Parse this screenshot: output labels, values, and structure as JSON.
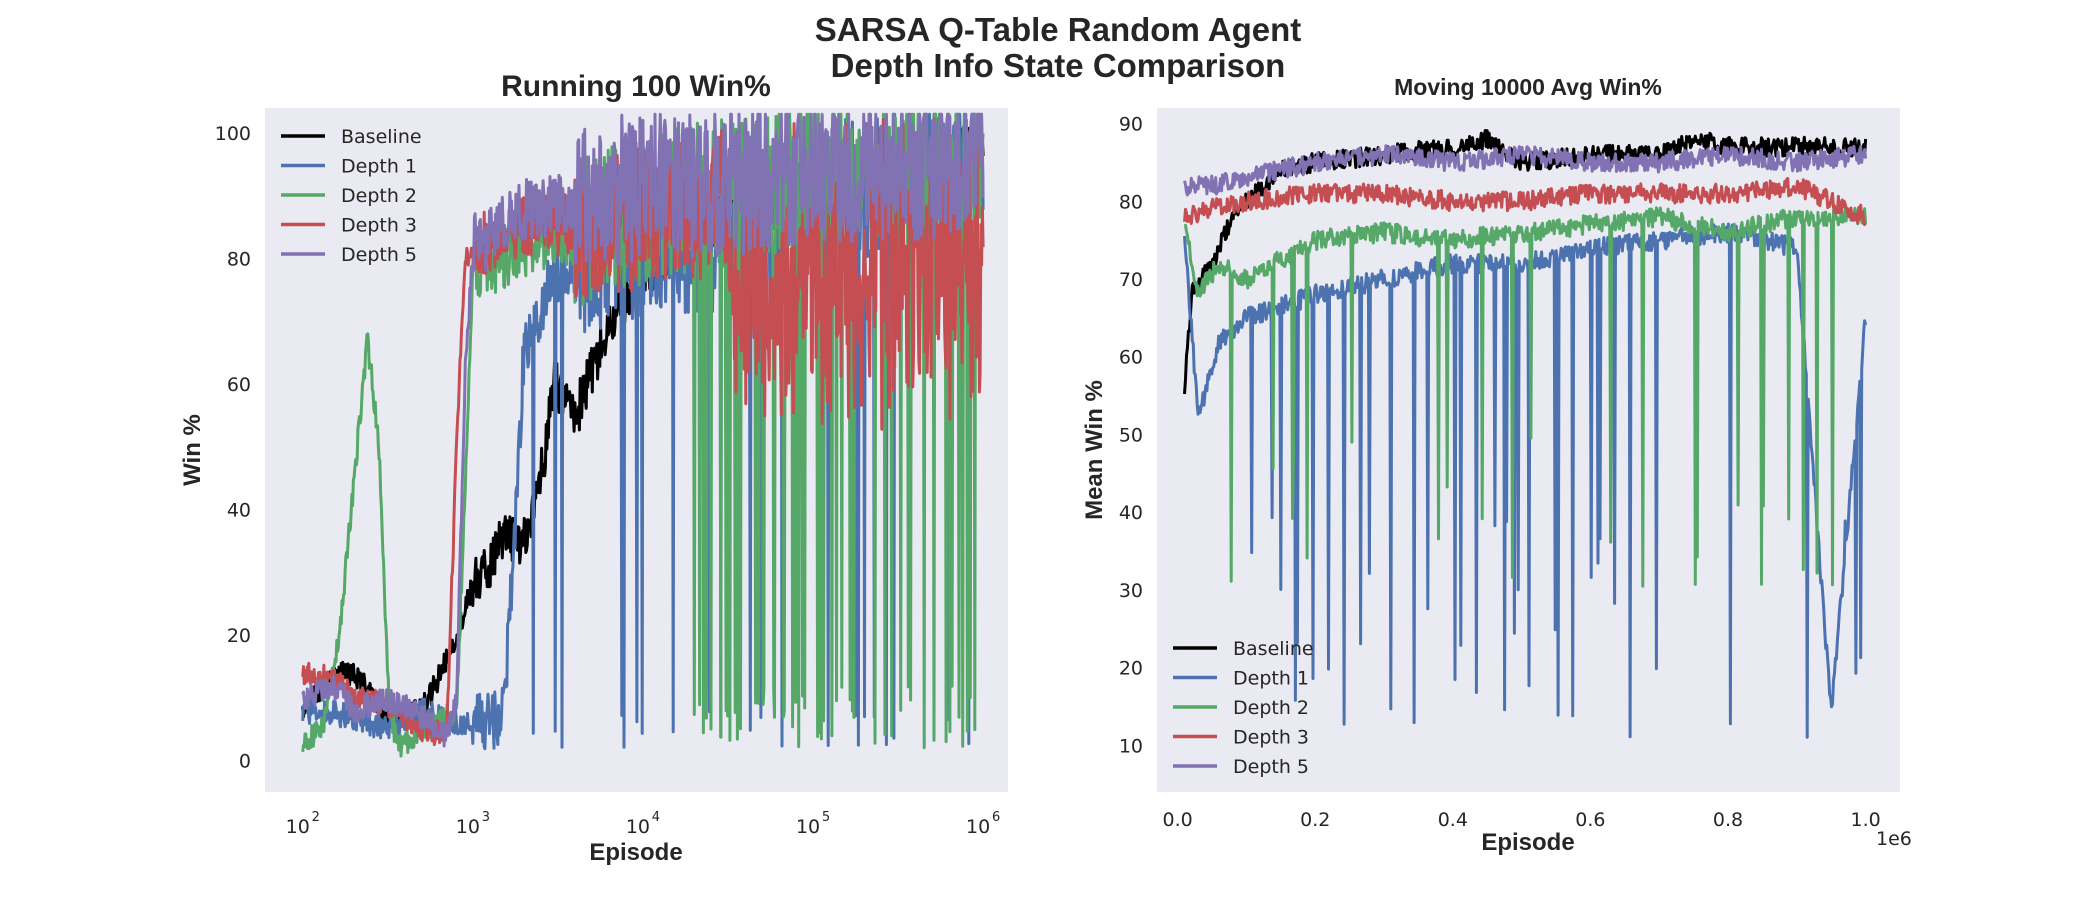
{
  "figure": {
    "suptitle_line1": "SARSA Q-Table Random Agent",
    "suptitle_line2": "Depth Info State Comparison",
    "background": "#ffffff",
    "axes_facecolor": "#eaeaf2"
  },
  "colors": {
    "Baseline": "#000000",
    "Depth 1": "#4c72b0",
    "Depth 2": "#55a868",
    "Depth 3": "#c44e52",
    "Depth 5": "#8172b3"
  },
  "chart_data": [
    {
      "type": "line",
      "title": "Running 100 Win%",
      "xlabel": "Episode",
      "ylabel": "Win %",
      "xscale": "log",
      "xlim": [
        60,
        1400000
      ],
      "ylim": [
        -5,
        104
      ],
      "xticks": [
        {
          "base": "10",
          "exp": "2",
          "value": 100
        },
        {
          "base": "10",
          "exp": "3",
          "value": 1000
        },
        {
          "base": "10",
          "exp": "4",
          "value": 10000
        },
        {
          "base": "10",
          "exp": "5",
          "value": 100000
        },
        {
          "base": "10",
          "exp": "6",
          "value": 1000000
        }
      ],
      "yticks": [
        "0",
        "20",
        "40",
        "60",
        "80",
        "100"
      ],
      "grid": false,
      "legend_placement": "upper-left",
      "legend": [
        "Baseline",
        "Depth 1",
        "Depth 2",
        "Depth 3",
        "Depth 5"
      ],
      "series": [
        {
          "name": "Baseline",
          "x": [
            100,
            150,
            200,
            300,
            500,
            800,
            1000,
            1500,
            2000,
            2500,
            3000,
            4000,
            5000,
            7000,
            10000,
            20000,
            50000,
            100000,
            200000,
            500000,
            1000000
          ],
          "y": [
            8,
            14,
            14,
            7,
            8,
            20,
            28,
            35,
            35,
            45,
            60,
            55,
            62,
            72,
            78,
            85,
            90,
            92,
            94,
            97,
            97
          ]
        },
        {
          "name": "Depth 1",
          "x": [
            100,
            200,
            300,
            500,
            800,
            1000,
            1500,
            2000,
            3000,
            5000,
            10000,
            20000,
            50000,
            100000,
            200000,
            500000,
            1000000
          ],
          "y": [
            8,
            7,
            5,
            8,
            6,
            6,
            7,
            65,
            78,
            80,
            82,
            82,
            84,
            88,
            92,
            94,
            95
          ]
        },
        {
          "name": "Depth 2",
          "x": [
            100,
            130,
            160,
            200,
            240,
            280,
            320,
            360,
            500,
            800,
            1000,
            1500,
            2000,
            5000,
            10000,
            20000,
            50000,
            100000,
            200000,
            500000,
            1000000
          ],
          "y": [
            3,
            5,
            18,
            45,
            67,
            50,
            10,
            2,
            5,
            8,
            78,
            80,
            82,
            85,
            88,
            90,
            92,
            93,
            94,
            95,
            96
          ]
        },
        {
          "name": "Depth 3",
          "x": [
            100,
            150,
            200,
            300,
            500,
            700,
            800,
            900,
            1000,
            2000,
            5000,
            10000,
            20000,
            50000,
            100000,
            200000,
            500000,
            1000000
          ],
          "y": [
            14,
            13,
            10,
            9,
            5,
            4,
            50,
            80,
            82,
            85,
            86,
            87,
            88,
            90,
            92,
            93,
            95,
            96
          ]
        },
        {
          "name": "Depth 5",
          "x": [
            100,
            150,
            200,
            300,
            500,
            700,
            800,
            900,
            1000,
            2000,
            5000,
            10000,
            20000,
            50000,
            100000,
            200000,
            500000,
            1000000
          ],
          "y": [
            10,
            12,
            8,
            10,
            7,
            4,
            10,
            62,
            82,
            88,
            90,
            92,
            92,
            93,
            94,
            95,
            95,
            96
          ]
        }
      ]
    },
    {
      "type": "line",
      "title": "Moving 10000 Avg Win%",
      "xlabel": "Episode",
      "ylabel": "Mean Win %",
      "xscale": "linear",
      "x_offset_label": "1e6",
      "xlim": [
        -0.03,
        1.05
      ],
      "ylim": [
        4,
        92
      ],
      "xticks": [
        "0.0",
        "0.2",
        "0.4",
        "0.6",
        "0.8",
        "1.0"
      ],
      "yticks": [
        "10",
        "20",
        "30",
        "40",
        "50",
        "60",
        "70",
        "80",
        "90"
      ],
      "grid": false,
      "legend_placement": "lower-left",
      "legend": [
        "Baseline",
        "Depth 1",
        "Depth 2",
        "Depth 3",
        "Depth 5"
      ],
      "series": [
        {
          "name": "Baseline",
          "x": [
            0.01,
            0.02,
            0.05,
            0.08,
            0.1,
            0.15,
            0.2,
            0.3,
            0.4,
            0.45,
            0.5,
            0.6,
            0.7,
            0.76,
            0.8,
            0.9,
            1.0
          ],
          "y": [
            56,
            68,
            72,
            78,
            80,
            84,
            85,
            86,
            87,
            88,
            85,
            86,
            86,
            88,
            87,
            87,
            87
          ]
        },
        {
          "name": "Depth 1",
          "x": [
            0.01,
            0.03,
            0.06,
            0.1,
            0.2,
            0.3,
            0.4,
            0.5,
            0.6,
            0.7,
            0.8,
            0.9,
            0.95,
            1.0
          ],
          "y": [
            76,
            52,
            62,
            65,
            68,
            70,
            72,
            72,
            74,
            75,
            76,
            74,
            14,
            65
          ]
        },
        {
          "name": "Depth 2",
          "x": [
            0.01,
            0.03,
            0.06,
            0.1,
            0.2,
            0.3,
            0.4,
            0.5,
            0.6,
            0.7,
            0.8,
            0.9,
            1.0
          ],
          "y": [
            78,
            68,
            72,
            70,
            75,
            76,
            75,
            76,
            77,
            78,
            76,
            78,
            78
          ]
        },
        {
          "name": "Depth 3",
          "x": [
            0.01,
            0.05,
            0.1,
            0.2,
            0.3,
            0.4,
            0.5,
            0.6,
            0.7,
            0.8,
            0.9,
            1.0
          ],
          "y": [
            78,
            79,
            80,
            81,
            81,
            80,
            80,
            81,
            81,
            81,
            82,
            78
          ]
        },
        {
          "name": "Depth 5",
          "x": [
            0.01,
            0.05,
            0.1,
            0.2,
            0.3,
            0.4,
            0.5,
            0.6,
            0.7,
            0.8,
            0.9,
            1.0
          ],
          "y": [
            82,
            82,
            83,
            85,
            86,
            85,
            86,
            85,
            85,
            86,
            85,
            86
          ]
        }
      ]
    }
  ]
}
